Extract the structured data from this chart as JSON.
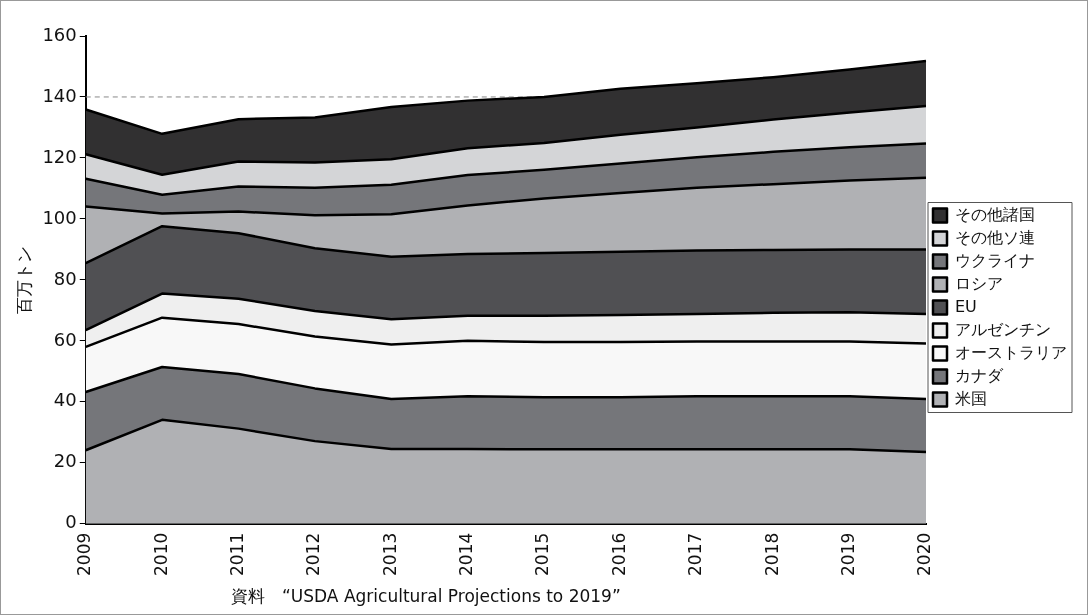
{
  "chart_data": {
    "type": "area",
    "stacked": true,
    "ylabel": "百万トン",
    "categories": [
      "2009",
      "2010",
      "2011",
      "2012",
      "2013",
      "2014",
      "2015",
      "2016",
      "2017",
      "2018",
      "2019",
      "2020"
    ],
    "series": [
      {
        "name": "米国",
        "color": "#b0b1b4",
        "values": [
          24.1,
          34.1,
          31.2,
          27.1,
          24.5,
          24.5,
          24.4,
          24.4,
          24.4,
          24.4,
          24.4,
          23.5
        ]
      },
      {
        "name": "カナダ",
        "color": "#75767a",
        "values": [
          19.1,
          17.3,
          17.9,
          17.3,
          16.4,
          17.3,
          17.1,
          17.1,
          17.4,
          17.4,
          17.4,
          17.4
        ]
      },
      {
        "name": "オーストラリア",
        "color": "#f8f8f8",
        "values": [
          14.8,
          16.2,
          16.4,
          17.0,
          17.9,
          18.2,
          18.1,
          18.1,
          18.0,
          18.0,
          18.0,
          18.2
        ]
      },
      {
        "name": "アルゼンチン",
        "color": "#efefef",
        "values": [
          5.5,
          7.9,
          8.3,
          8.4,
          8.3,
          8.2,
          8.6,
          8.9,
          9.0,
          9.4,
          9.6,
          9.7
        ]
      },
      {
        "name": "EU",
        "color": "#505053",
        "values": [
          22.0,
          22.1,
          21.5,
          20.6,
          20.5,
          20.3,
          20.6,
          20.7,
          20.8,
          20.6,
          20.6,
          21.2
        ]
      },
      {
        "name": "ロシア",
        "color": "#b0b1b4",
        "values": [
          18.6,
          4.2,
          7.1,
          10.8,
          13.9,
          15.9,
          17.9,
          19.3,
          20.6,
          21.6,
          22.6,
          23.5
        ]
      },
      {
        "name": "ウクライナ",
        "color": "#75767a",
        "values": [
          9.1,
          6.1,
          8.2,
          9.0,
          9.7,
          10.0,
          9.4,
          9.7,
          10.0,
          10.6,
          10.9,
          11.2
        ]
      },
      {
        "name": "その他ソ連",
        "color": "#d4d5d7",
        "values": [
          8.0,
          6.6,
          8.2,
          8.3,
          8.4,
          8.8,
          8.8,
          9.4,
          9.8,
          10.6,
          11.4,
          12.3
        ]
      },
      {
        "name": "その他諸国",
        "color": "#313031",
        "values": [
          14.7,
          13.4,
          13.9,
          14.8,
          17.1,
          15.6,
          15.1,
          15.1,
          14.5,
          13.9,
          14.1,
          14.8
        ]
      }
    ],
    "ylim": [
      0,
      160
    ],
    "yticks": [
      0,
      20,
      40,
      60,
      80,
      100,
      120,
      140,
      160
    ],
    "grid": false,
    "legend": "right",
    "ref_lines": [
      {
        "axis": "y",
        "value": 140,
        "color": "#888888",
        "line_style": "dashed"
      }
    ],
    "annotations": [
      "資料　“USDA Agricultural Projections to 2019”"
    ]
  }
}
